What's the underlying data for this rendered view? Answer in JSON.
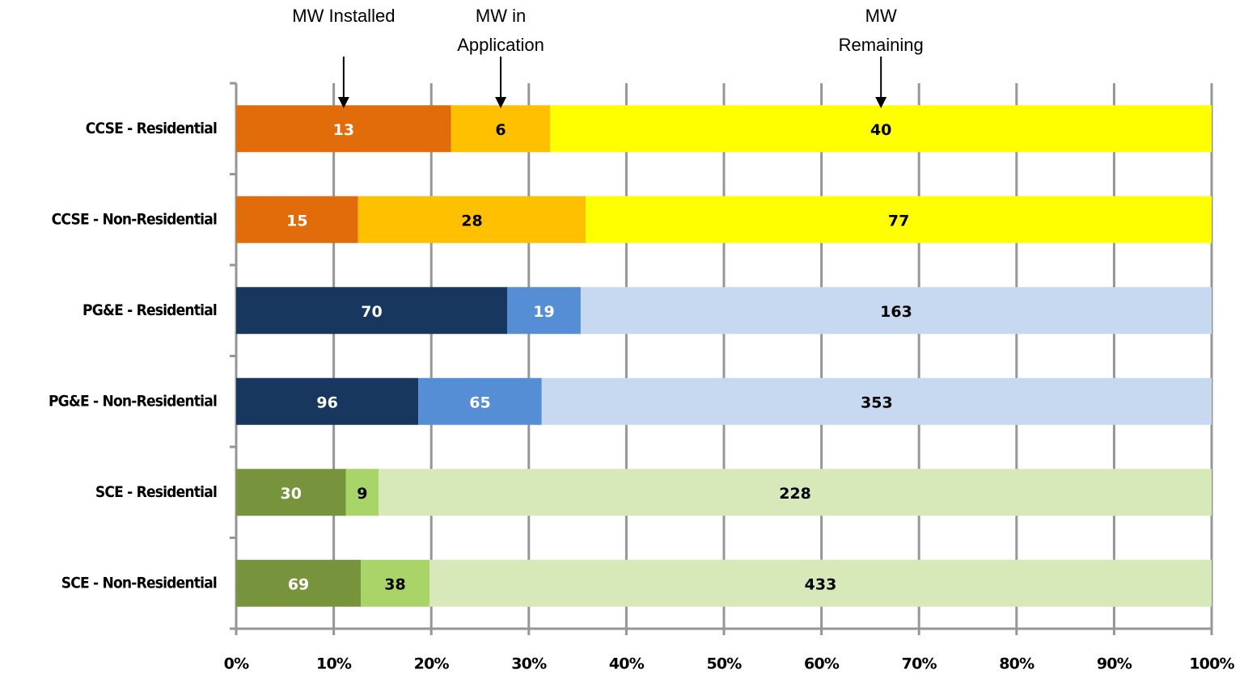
{
  "chart_data": {
    "type": "stacked_bar_100_horizontal",
    "categories": [
      "CCSE - Residential",
      "CCSE - Non-Residential",
      "PG&E - Residential",
      "PG&E - Non-Residential",
      "SCE - Residential",
      "SCE - Non-Residential"
    ],
    "series": [
      {
        "name": "MW Installed",
        "colors": [
          "#e36c0a",
          "#e36c0a",
          "#17375e",
          "#17375e",
          "#77933c",
          "#77933c"
        ],
        "values": [
          13,
          15,
          70,
          96,
          30,
          69
        ]
      },
      {
        "name": "MW in Application",
        "colors": [
          "#ffc000",
          "#ffc000",
          "#558ed5",
          "#558ed5",
          "#a9d468",
          "#a9d468"
        ],
        "values": [
          6,
          28,
          19,
          65,
          9,
          38
        ]
      },
      {
        "name": "MW Remaining",
        "colors": [
          "#ffff00",
          "#ffff00",
          "#c6d9f1",
          "#c6d9f1",
          "#d7e9b9",
          "#d7e9b9"
        ],
        "values": [
          40,
          77,
          163,
          353,
          228,
          433
        ]
      }
    ],
    "xlim": [
      0,
      100
    ],
    "xticks": [
      {
        "value": 0,
        "label": "0%"
      },
      {
        "value": 10,
        "label": "10%"
      },
      {
        "value": 20,
        "label": "20%"
      },
      {
        "value": 30,
        "label": "30%"
      },
      {
        "value": 40,
        "label": "40%"
      },
      {
        "value": 50,
        "label": "50%"
      },
      {
        "value": 60,
        "label": "60%"
      },
      {
        "value": 70,
        "label": "70%"
      },
      {
        "value": 80,
        "label": "80%"
      },
      {
        "value": 90,
        "label": "90%"
      },
      {
        "value": 100,
        "label": "100%"
      }
    ],
    "grid": true
  }
}
